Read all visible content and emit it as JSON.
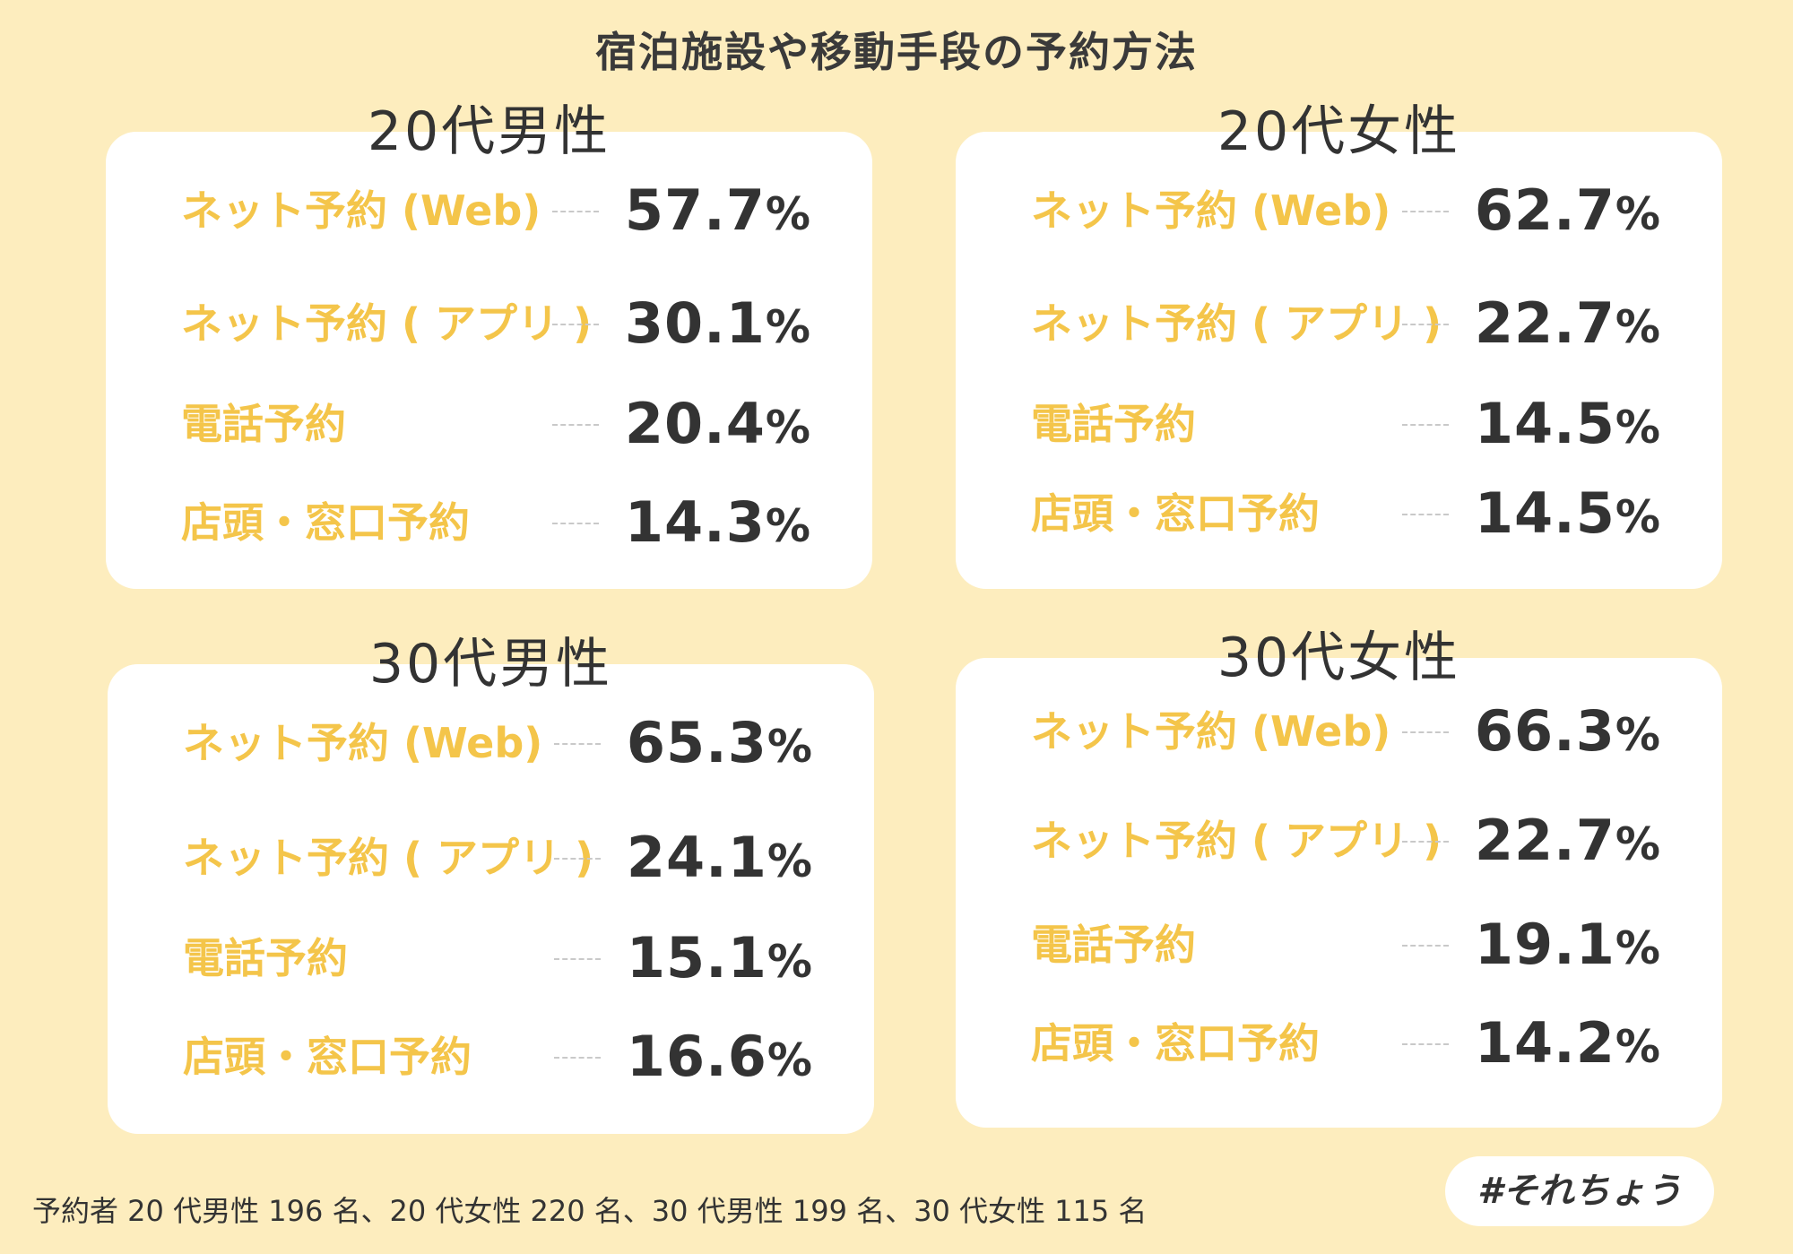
{
  "title": "宿泊施設や移動手段の予約方法",
  "colors": {
    "background": "#fdedbe",
    "panel": "#ffffff",
    "label": "#f4c54a",
    "value": "#333333"
  },
  "chart_data": [
    {
      "type": "table",
      "title": "20代男性",
      "categories": [
        "ネット予約 (Web)",
        "ネット予約 ( アプリ )",
        "電話予約",
        "店頭・窓口予約"
      ],
      "values": [
        57.7,
        30.1,
        20.4,
        14.3
      ],
      "display": [
        "57.7",
        "30.1",
        "20.4",
        "14.3"
      ],
      "unit": "%"
    },
    {
      "type": "table",
      "title": "20代女性",
      "categories": [
        "ネット予約 (Web)",
        "ネット予約 ( アプリ )",
        "電話予約",
        "店頭・窓口予約"
      ],
      "values": [
        62.7,
        22.7,
        14.5,
        14.5
      ],
      "display": [
        "62.7",
        "22.7",
        "14.5",
        "14.5"
      ],
      "unit": "%"
    },
    {
      "type": "table",
      "title": "30代男性",
      "categories": [
        "ネット予約 (Web)",
        "ネット予約 ( アプリ )",
        "電話予約",
        "店頭・窓口予約"
      ],
      "values": [
        65.3,
        24.1,
        15.1,
        16.6
      ],
      "display": [
        "65.3",
        "24.1",
        "15.1",
        "16.6"
      ],
      "unit": "%"
    },
    {
      "type": "table",
      "title": "30代女性",
      "categories": [
        "ネット予約 (Web)",
        "ネット予約 ( アプリ )",
        "電話予約",
        "店頭・窓口予約"
      ],
      "values": [
        66.3,
        22.7,
        19.1,
        14.2
      ],
      "display": [
        "66.3",
        "22.7",
        "19.1",
        "14.2"
      ],
      "unit": "%"
    }
  ],
  "footnote": "予約者 20 代男性 196 名、20 代女性 220 名、30 代男性 199 名、30 代女性 115 名",
  "hashtag": "#それちょう"
}
